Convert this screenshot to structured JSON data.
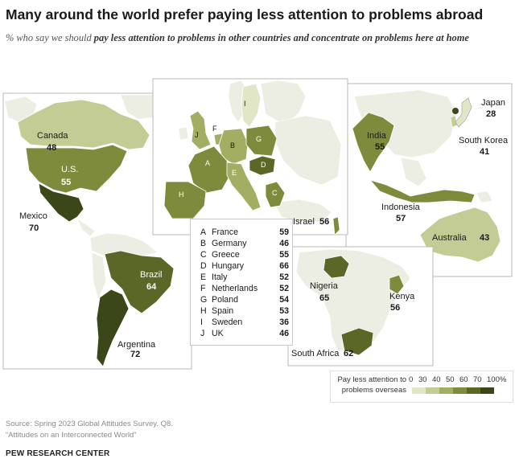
{
  "title": "Many around the world prefer paying less attention to problems abroad",
  "subtitle_lead": "% who say we should ",
  "subtitle_emph": "pay less attention to problems in other countries and concentrate on problems here at home",
  "colors": {
    "scale": [
      "#e1e6c7",
      "#c3cc95",
      "#a3ae62",
      "#7f8b3c",
      "#5b6727",
      "#3b4619"
    ],
    "no_data": "#eceee4",
    "panel_border": "#b9b9b9"
  },
  "countries": {
    "canada": {
      "name": "Canada",
      "value": "48"
    },
    "us": {
      "name": "U.S.",
      "value": "55"
    },
    "mexico": {
      "name": "Mexico",
      "value": "70"
    },
    "brazil": {
      "name": "Brazil",
      "value": "64"
    },
    "argentina": {
      "name": "Argentina",
      "value": "72"
    },
    "israel": {
      "name": "Israel",
      "value": "56"
    },
    "japan": {
      "name": "Japan",
      "value": "28"
    },
    "south_korea": {
      "name": "South Korea",
      "value": "41"
    },
    "india": {
      "name": "India",
      "value": "55"
    },
    "indonesia": {
      "name": "Indonesia",
      "value": "57"
    },
    "australia": {
      "name": "Australia",
      "value": "43"
    },
    "nigeria": {
      "name": "Nigeria",
      "value": "65"
    },
    "kenya": {
      "name": "Kenya",
      "value": "56"
    },
    "south_africa": {
      "name": "South Africa",
      "value": "62"
    }
  },
  "europe_letters": [
    "A",
    "B",
    "C",
    "D",
    "E",
    "F",
    "G",
    "H",
    "I",
    "J"
  ],
  "europe_legend": [
    {
      "key": "A",
      "name": "France",
      "value": "59"
    },
    {
      "key": "B",
      "name": "Germany",
      "value": "46"
    },
    {
      "key": "C",
      "name": "Greece",
      "value": "55"
    },
    {
      "key": "D",
      "name": "Hungary",
      "value": "66"
    },
    {
      "key": "E",
      "name": "Italy",
      "value": "52"
    },
    {
      "key": "F",
      "name": "Netherlands",
      "value": "52"
    },
    {
      "key": "G",
      "name": "Poland",
      "value": "54"
    },
    {
      "key": "H",
      "name": "Spain",
      "value": "53"
    },
    {
      "key": "I",
      "name": "Sweden",
      "value": "36"
    },
    {
      "key": "J",
      "name": "UK",
      "value": "46"
    }
  ],
  "color_scale": {
    "label_line1": "Pay less attention to",
    "label_line2": "problems overseas",
    "ticks": [
      "0",
      "30",
      "40",
      "50",
      "60",
      "70",
      "100%"
    ]
  },
  "source_line1": "Source: Spring 2023 Global Attitudes Survey. Q8.",
  "source_line2": "“Attitudes on an Interconnected World”",
  "org": "PEW RESEARCH CENTER"
}
